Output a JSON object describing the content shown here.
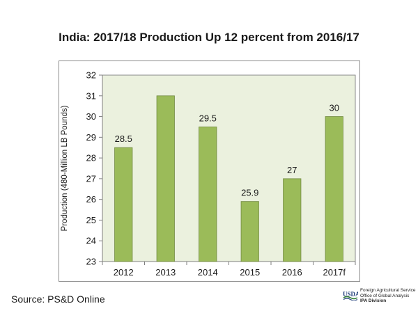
{
  "chart_data": {
    "type": "bar",
    "title": "India: 2017/18 Production Up 12 percent from 2016/17",
    "xlabel": "",
    "ylabel": "Production (480-Million LB Pounds)",
    "categories": [
      "2012",
      "2013",
      "2014",
      "2015",
      "2016",
      "2017f"
    ],
    "values": [
      28.5,
      31,
      29.5,
      25.9,
      27,
      30
    ],
    "data_labels": [
      "28.5",
      "",
      "29.5",
      "25.9",
      "27",
      "30"
    ],
    "ylim": [
      23,
      32
    ],
    "yticks": [
      "23",
      "24",
      "25",
      "26",
      "27",
      "28",
      "29",
      "30",
      "31",
      "32"
    ],
    "grid": false,
    "legend": "none",
    "bar_color": "#9bbb59",
    "bar_edge_color": "#71893f",
    "plot_background": "#ebf1de"
  },
  "footer": {
    "source": "Source: PS&D Online",
    "logo_text": "USDA",
    "agency_lines": [
      "Foreign Agricultural Service",
      "Office of Global Analysis",
      "IPA Division"
    ]
  }
}
